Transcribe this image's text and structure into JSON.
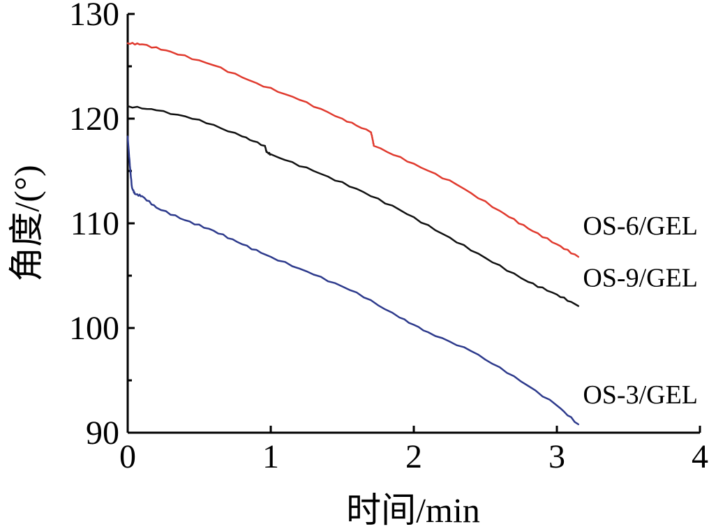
{
  "chart_data": {
    "type": "line",
    "xlabel": "时间/min",
    "ylabel": "角度/(°)",
    "xlim": [
      0,
      4
    ],
    "ylim": [
      90,
      130
    ],
    "x_ticks": [
      "0",
      "1",
      "2",
      "3",
      "4"
    ],
    "y_ticks": [
      "90",
      "100",
      "110",
      "120",
      "130"
    ],
    "grid": false,
    "legend": "labels-at-line-ends",
    "series": [
      {
        "name": "OS-6/GEL",
        "color": "#e03a2e",
        "x": [
          0,
          0.1,
          0.3,
          0.6,
          0.9,
          1.2,
          1.5,
          1.7,
          1.71,
          1.72,
          2.0,
          2.3,
          2.6,
          2.8,
          3.0,
          3.15
        ],
        "y": [
          127.2,
          127.1,
          126.4,
          125.1,
          123.4,
          121.8,
          120.0,
          118.7,
          118.2,
          117.4,
          115.7,
          113.7,
          111.2,
          109.5,
          108.0,
          106.8
        ]
      },
      {
        "name": "OS-9/GEL",
        "color": "#111111",
        "x": [
          0,
          0.2,
          0.5,
          0.8,
          0.96,
          0.97,
          1.0,
          1.3,
          1.6,
          1.9,
          2.2,
          2.5,
          2.8,
          3.0,
          3.15
        ],
        "y": [
          121.2,
          120.8,
          119.9,
          118.3,
          117.4,
          116.8,
          116.6,
          115.0,
          113.3,
          111.3,
          109.0,
          106.7,
          104.4,
          103.2,
          102.1
        ]
      },
      {
        "name": "OS-3/GEL",
        "color": "#2d3a8c",
        "x": [
          0,
          0.015,
          0.03,
          0.05,
          0.1,
          0.2,
          0.4,
          0.6,
          0.8,
          1.0,
          1.3,
          1.6,
          1.9,
          2.1,
          2.4,
          2.7,
          3.0,
          3.15
        ],
        "y": [
          118.3,
          115.5,
          113.4,
          112.8,
          112.6,
          111.5,
          110.3,
          109.3,
          108.0,
          106.8,
          105.1,
          103.4,
          101.0,
          99.6,
          97.8,
          95.4,
          92.6,
          90.8
        ]
      }
    ]
  }
}
